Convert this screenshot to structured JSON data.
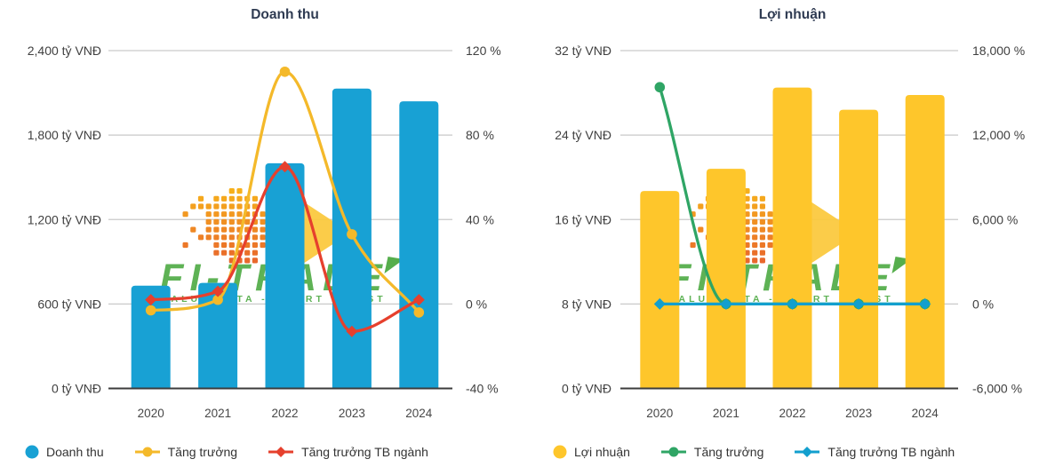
{
  "watermark": {
    "brand": "FI-TRADE",
    "tagline": "VALUE DATA - SMART INVEST",
    "brand_color": "#56AE4C",
    "dots_color_from": "#F6B01B",
    "dots_color_to": "#E9682C",
    "arrow_color": "#FBC93F"
  },
  "theme": {
    "grid": "#C9C9C9",
    "axis_line": "#3C3C3C",
    "label_color": "#404040",
    "title_color": "#2F3B52",
    "legend_text": "#333333",
    "background": "#FFFFFF"
  },
  "chart_data": [
    {
      "type": "bar+line",
      "title": "Doanh thu",
      "categories": [
        "2020",
        "2021",
        "2022",
        "2023",
        "2024"
      ],
      "left_axis": {
        "labels": [
          "2,400 tỷ VNĐ",
          "1,800 tỷ VNĐ",
          "1,200 tỷ VNĐ",
          "600 tỷ VNĐ",
          "0 tỷ VNĐ"
        ],
        "min": 0,
        "max": 2400
      },
      "right_axis": {
        "labels": [
          "120 %",
          "80 %",
          "40 %",
          "0 %",
          "-40 %"
        ],
        "min": -40,
        "max": 120
      },
      "bar_series": {
        "name": "Doanh thu",
        "color": "#18A1D4",
        "axis": "left",
        "values": [
          730,
          750,
          1600,
          2130,
          2040
        ]
      },
      "line_series": [
        {
          "name": "Tăng trưởng",
          "color": "#F4B92A",
          "marker": "circle",
          "axis": "right",
          "values": [
            -3,
            2,
            110,
            33,
            -4
          ]
        },
        {
          "name": "Tăng trưởng TB ngành",
          "color": "#E6402D",
          "marker": "diamond",
          "axis": "right",
          "values": [
            2,
            6,
            65,
            -13,
            2
          ]
        }
      ],
      "legend_position": "bottom-left",
      "grid": true
    },
    {
      "type": "bar+line",
      "title": "Lợi nhuận",
      "categories": [
        "2020",
        "2021",
        "2022",
        "2023",
        "2024"
      ],
      "left_axis": {
        "labels": [
          "32 tỷ VNĐ",
          "24 tỷ VNĐ",
          "16 tỷ VNĐ",
          "8 tỷ VNĐ",
          "0 tỷ VNĐ"
        ],
        "min": 0,
        "max": 32
      },
      "right_axis": {
        "labels": [
          "18,000 %",
          "12,000 %",
          "6,000 %",
          "0 %",
          "-6,000 %"
        ],
        "min": -6000,
        "max": 18000
      },
      "bar_series": {
        "name": "Lợi nhuận",
        "color": "#FEC62B",
        "axis": "left",
        "values": [
          18.7,
          20.8,
          28.5,
          26.4,
          27.8
        ]
      },
      "line_series": [
        {
          "name": "Tăng trưởng",
          "color": "#2FA565",
          "marker": "circle",
          "axis": "right",
          "values": [
            15400,
            0,
            0,
            0,
            0
          ]
        },
        {
          "name": "Tăng trưởng TB ngành",
          "color": "#129FCE",
          "marker": "diamond",
          "axis": "right",
          "values": [
            0,
            0,
            0,
            0,
            0
          ]
        }
      ],
      "legend_position": "bottom-left",
      "grid": true
    }
  ]
}
